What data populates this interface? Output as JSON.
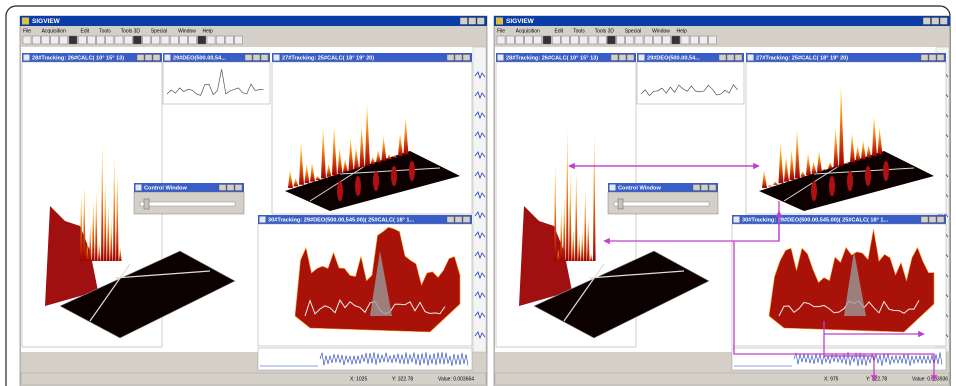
{
  "panels": [
    {
      "app_title": "SIGVIEW",
      "menu": [
        "File",
        "Acquisition",
        "Edit",
        "Tools",
        "Tools 3D",
        "Special",
        "Window",
        "Help"
      ],
      "windows": {
        "left": "28#Tracking:  26#CALC( 10° 15° 13)",
        "small": "29#DEO(500.00,54...",
        "top": "27#Tracking:  25#CALC( 18° 19° 20)",
        "control": "Control Window",
        "bottom": "30#Tracking:  29#DEO(500.00,545.00)( 25#CALC( 18° 1..."
      },
      "status": [
        "X: 1025",
        "Y: 322.78",
        "Value: 0.003664"
      ]
    },
    {
      "app_title": "SIGVIEW",
      "menu": [
        "File",
        "Acquisition",
        "Edit",
        "Tools",
        "Tools 3D",
        "Special",
        "Window",
        "Help"
      ],
      "windows": {
        "left": "28#Tracking:  26#CALC( 10° 15° 13)",
        "small": "29#DEO(500.00,54...",
        "top": "27#Tracking:  25#CALC( 18° 19° 20)",
        "control": "Control Window",
        "bottom": "30#Tracking:  29#DEO(500.00,545.00)( 25#CALC( 18° 1..."
      },
      "status": [
        "X: 975",
        "Y: 322.78",
        "Value: 0.003936"
      ]
    }
  ]
}
